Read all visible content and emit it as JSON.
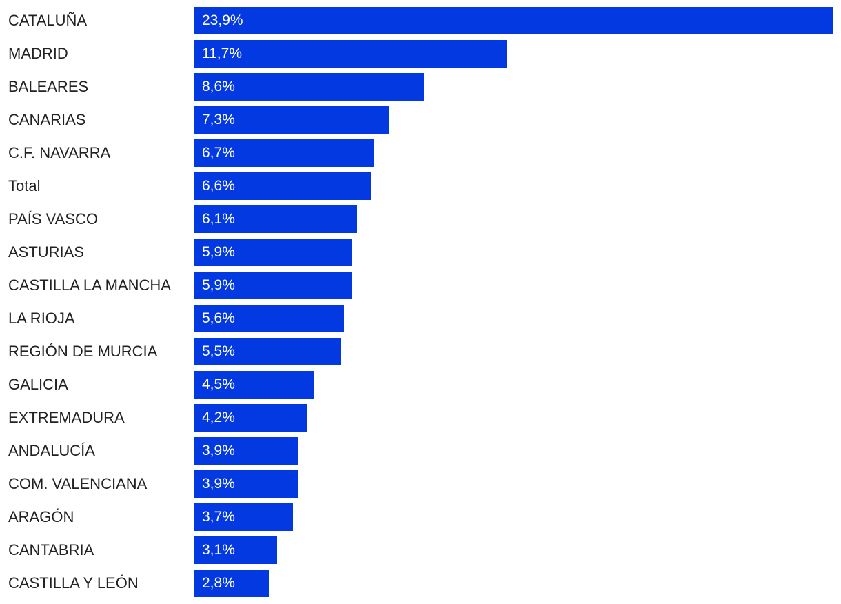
{
  "chart_data": {
    "type": "bar",
    "orientation": "horizontal",
    "categories": [
      "CATALUÑA",
      "MADRID",
      "BALEARES",
      "CANARIAS",
      "C.F. NAVARRA",
      "Total",
      "PAÍS VASCO",
      "ASTURIAS",
      "CASTILLA LA MANCHA",
      "LA RIOJA",
      "REGIÓN DE MURCIA",
      "GALICIA",
      "EXTREMADURA",
      "ANDALUCÍA",
      "COM. VALENCIANA",
      "ARAGÓN",
      "CANTABRIA",
      "CASTILLA Y LEÓN"
    ],
    "values": [
      23.9,
      11.7,
      8.6,
      7.3,
      6.7,
      6.6,
      6.1,
      5.9,
      5.9,
      5.6,
      5.5,
      4.5,
      4.2,
      3.9,
      3.9,
      3.7,
      3.1,
      2.8
    ],
    "value_labels": [
      "23,9%",
      "11,7%",
      "8,6%",
      "7,3%",
      "6,7%",
      "6,6%",
      "6,1%",
      "5,9%",
      "5,9%",
      "5,6%",
      "5,5%",
      "4,5%",
      "4,2%",
      "3,9%",
      "3,9%",
      "3,7%",
      "3,1%",
      "2,8%"
    ],
    "title": "",
    "xlabel": "",
    "ylabel": "",
    "xlim": [
      0,
      23.9
    ],
    "grid": false,
    "legend": "none",
    "bar_color": "#0339e0"
  }
}
